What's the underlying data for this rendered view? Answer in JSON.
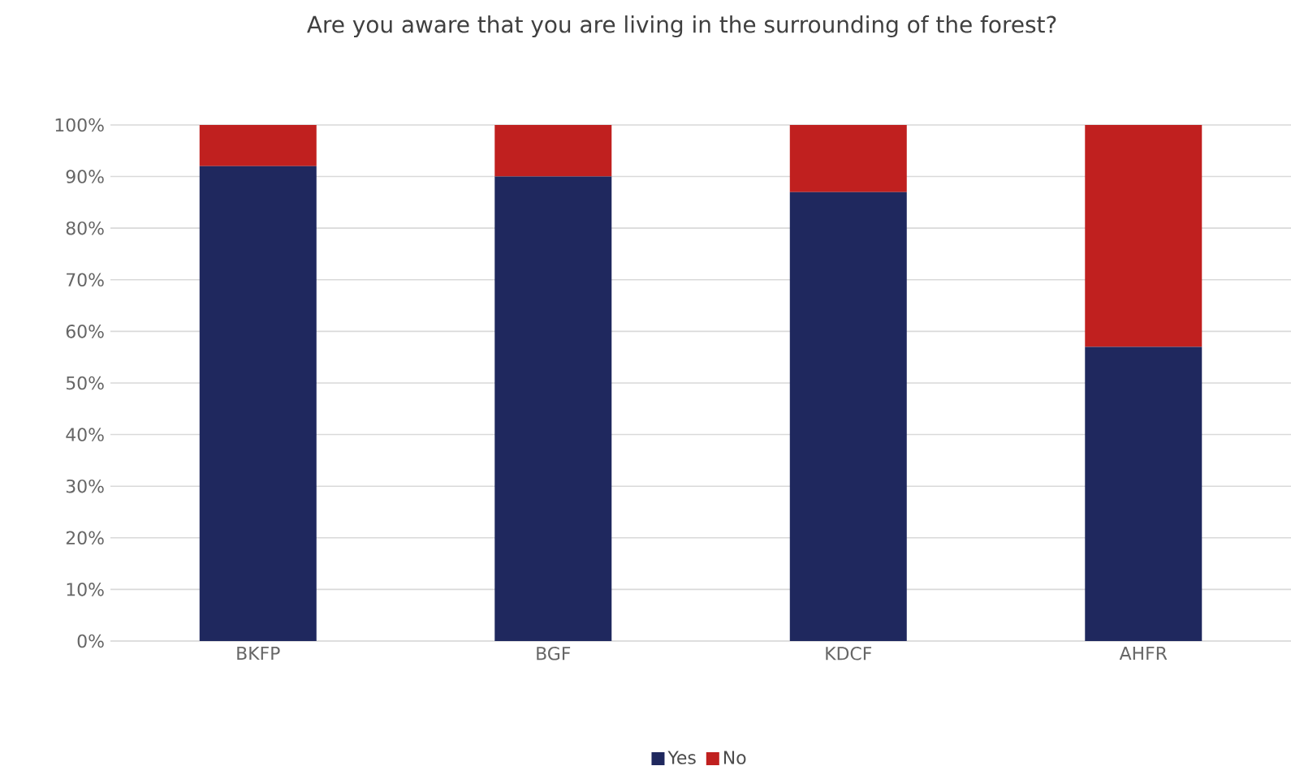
{
  "chart_data": {
    "type": "bar",
    "stacked": true,
    "title": "Are you aware that you are living in the surrounding of the forest?",
    "categories": [
      "BKFP",
      "BGF",
      "KDCF",
      "AHFR"
    ],
    "series": [
      {
        "name": "Yes",
        "color": "#1f285e",
        "values": [
          92,
          90,
          87,
          57
        ]
      },
      {
        "name": "No",
        "color": "#c0201f",
        "values": [
          8,
          10,
          13,
          43
        ]
      }
    ],
    "ylim": [
      0,
      100
    ],
    "yticks": [
      {
        "value": 0,
        "label": "0%"
      },
      {
        "value": 10,
        "label": "10%"
      },
      {
        "value": 20,
        "label": "20%"
      },
      {
        "value": 30,
        "label": "30%"
      },
      {
        "value": 40,
        "label": "40%"
      },
      {
        "value": 50,
        "label": "50%"
      },
      {
        "value": 60,
        "label": "60%"
      },
      {
        "value": 70,
        "label": "70%"
      },
      {
        "value": 80,
        "label": "80%"
      },
      {
        "value": 90,
        "label": "90%"
      },
      {
        "value": 100,
        "label": "100%"
      }
    ],
    "grid": "y",
    "legend": "bottom"
  }
}
